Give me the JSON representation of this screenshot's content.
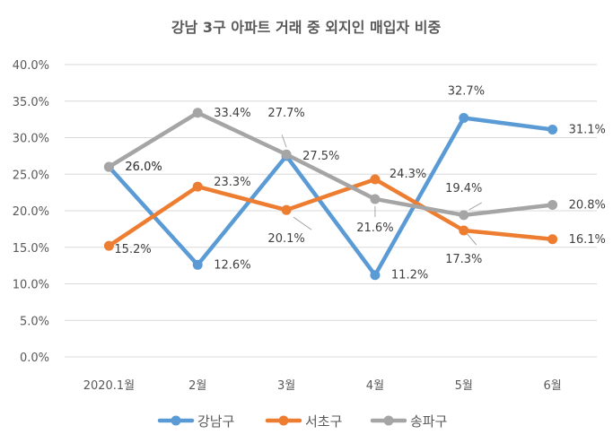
{
  "chart_data": {
    "type": "line",
    "title": "강남 3구 아파트 거래 중 외지인 매입자 비중",
    "categories": [
      "2020.1월",
      "2월",
      "3월",
      "4월",
      "5월",
      "6월"
    ],
    "ylim": [
      0,
      40
    ],
    "yticks": [
      "0.0%",
      "5.0%",
      "10.0%",
      "15.0%",
      "20.0%",
      "25.0%",
      "30.0%",
      "35.0%",
      "40.0%"
    ],
    "grid": true,
    "legend": "bottom",
    "series": [
      {
        "name": "강남구",
        "color": "#5B9BD5",
        "values": [
          26.0,
          12.6,
          27.5,
          11.2,
          32.7,
          31.1
        ],
        "labels": [
          "26.0%",
          "12.6%",
          "27.5%",
          "11.2%",
          "32.7%",
          "31.1%"
        ]
      },
      {
        "name": "서초구",
        "color": "#ED7D31",
        "values": [
          15.2,
          23.3,
          20.1,
          24.3,
          17.3,
          16.1
        ],
        "labels": [
          "15.2%",
          "23.3%",
          "20.1%",
          "24.3%",
          "17.3%",
          "16.1%"
        ]
      },
      {
        "name": "송파구",
        "color": "#A5A5A5",
        "values": [
          26.0,
          33.4,
          27.7,
          21.6,
          19.4,
          20.8
        ],
        "labels": [
          "26.0%",
          "33.4%",
          "27.7%",
          "21.6%",
          "19.4%",
          "20.8%"
        ]
      }
    ]
  }
}
